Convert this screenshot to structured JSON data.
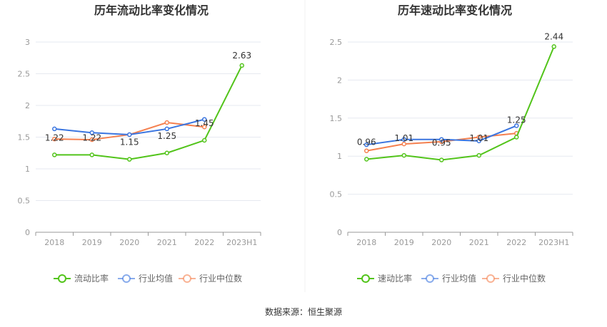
{
  "source": "数据来源：恒生聚源",
  "chart_data": [
    {
      "type": "line",
      "title": "历年流动比率变化情况",
      "categories": [
        "2018",
        "2019",
        "2020",
        "2021",
        "2022",
        "2023H1"
      ],
      "ylim": [
        0,
        3
      ],
      "yticks": [
        "0",
        "0.5",
        "1",
        "1.5",
        "2",
        "2.5",
        "3"
      ],
      "ytick_values": [
        0,
        0.5,
        1,
        1.5,
        2,
        2.5,
        3
      ],
      "legend_position": "bottom",
      "series": [
        {
          "name": "流动比率",
          "color": "#52c41a",
          "values": [
            1.22,
            1.22,
            1.15,
            1.25,
            1.45,
            2.63
          ],
          "labels": [
            "1.22",
            "1.22",
            "1.15",
            "1.25",
            "1.45",
            "2.63"
          ]
        },
        {
          "name": "行业均值",
          "color": "#3a75e0",
          "values": [
            1.63,
            1.57,
            1.54,
            1.63,
            1.78,
            null
          ]
        },
        {
          "name": "行业中位数",
          "color": "#f5804f",
          "values": [
            1.47,
            1.46,
            1.54,
            1.73,
            1.66,
            null
          ]
        }
      ]
    },
    {
      "type": "line",
      "title": "历年速动比率变化情况",
      "categories": [
        "2018",
        "2019",
        "2020",
        "2021",
        "2022",
        "2023H1"
      ],
      "ylim": [
        0,
        2.5
      ],
      "yticks": [
        "0",
        "0.5",
        "1",
        "1.5",
        "2",
        "2.5"
      ],
      "ytick_values": [
        0,
        0.5,
        1,
        1.5,
        2,
        2.5
      ],
      "legend_position": "bottom",
      "series": [
        {
          "name": "速动比率",
          "color": "#52c41a",
          "values": [
            0.96,
            1.01,
            0.95,
            1.01,
            1.25,
            2.44
          ],
          "labels": [
            "0.96",
            "1.01",
            "0.95",
            "1.01",
            "1.25",
            "2.44"
          ]
        },
        {
          "name": "行业均值",
          "color": "#3a75e0",
          "values": [
            1.15,
            1.22,
            1.22,
            1.2,
            1.4,
            null
          ]
        },
        {
          "name": "行业中位数",
          "color": "#f5804f",
          "values": [
            1.07,
            1.16,
            1.19,
            1.25,
            1.3,
            null
          ]
        }
      ]
    }
  ]
}
